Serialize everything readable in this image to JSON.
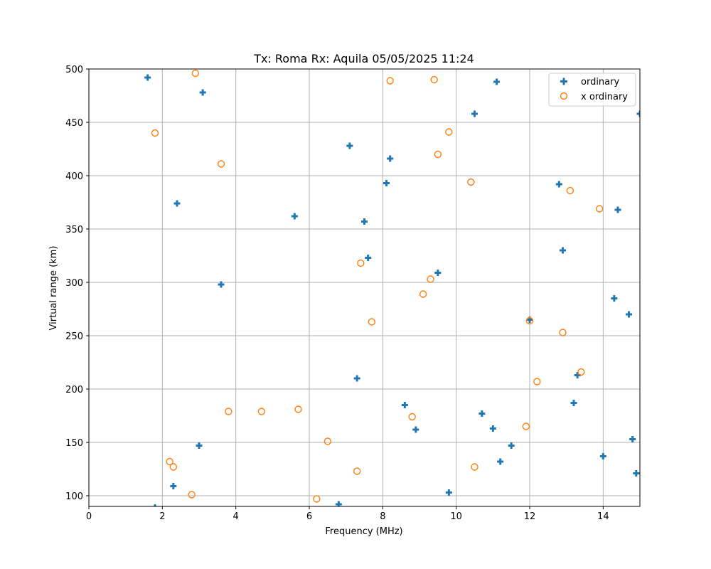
{
  "chart_data": {
    "type": "scatter",
    "title": "Tx: Roma Rx: Aquila 05/05/2025 11:24",
    "xlabel": "Frequency (MHz)",
    "ylabel": "Virtual range (km)",
    "xlim": [
      0,
      15
    ],
    "ylim": [
      90,
      500
    ],
    "xticks": [
      0,
      2,
      4,
      6,
      8,
      10,
      12,
      14
    ],
    "yticks": [
      100,
      150,
      200,
      250,
      300,
      350,
      400,
      450,
      500
    ],
    "grid": true,
    "legend_position": "upper right",
    "series": [
      {
        "name": "ordinary",
        "marker": "plus",
        "color": "#1f77b4",
        "points": [
          [
            1.6,
            492
          ],
          [
            3.1,
            478
          ],
          [
            2.4,
            374
          ],
          [
            5.6,
            362
          ],
          [
            3.6,
            298
          ],
          [
            1.8,
            89
          ],
          [
            2.3,
            109
          ],
          [
            3.0,
            147
          ],
          [
            7.1,
            428
          ],
          [
            8.2,
            416
          ],
          [
            8.1,
            393
          ],
          [
            7.5,
            357
          ],
          [
            7.6,
            323
          ],
          [
            9.5,
            309
          ],
          [
            7.3,
            210
          ],
          [
            8.6,
            185
          ],
          [
            8.9,
            162
          ],
          [
            6.8,
            92
          ],
          [
            9.8,
            103
          ],
          [
            10.5,
            458
          ],
          [
            11.1,
            488
          ],
          [
            10.7,
            177
          ],
          [
            11.0,
            163
          ],
          [
            11.5,
            147
          ],
          [
            11.2,
            132
          ],
          [
            12.0,
            265
          ],
          [
            12.8,
            392
          ],
          [
            12.9,
            330
          ],
          [
            13.3,
            213
          ],
          [
            13.2,
            187
          ],
          [
            14.0,
            137
          ],
          [
            14.3,
            285
          ],
          [
            14.4,
            368
          ],
          [
            14.7,
            270
          ],
          [
            14.8,
            153
          ],
          [
            14.9,
            121
          ],
          [
            15.0,
            458
          ]
        ]
      },
      {
        "name": "x ordinary",
        "marker": "circle-open",
        "color": "#ff7f0e",
        "points": [
          [
            2.9,
            496
          ],
          [
            1.8,
            440
          ],
          [
            3.6,
            411
          ],
          [
            8.2,
            489
          ],
          [
            9.4,
            490
          ],
          [
            9.8,
            441
          ],
          [
            9.5,
            420
          ],
          [
            10.4,
            394
          ],
          [
            7.4,
            318
          ],
          [
            9.3,
            303
          ],
          [
            9.1,
            289
          ],
          [
            7.7,
            263
          ],
          [
            3.8,
            179
          ],
          [
            4.7,
            179
          ],
          [
            5.7,
            181
          ],
          [
            6.5,
            151
          ],
          [
            8.8,
            174
          ],
          [
            2.2,
            132
          ],
          [
            2.3,
            127
          ],
          [
            2.8,
            101
          ],
          [
            6.2,
            97
          ],
          [
            7.3,
            123
          ],
          [
            10.5,
            127
          ],
          [
            11.9,
            165
          ],
          [
            12.0,
            264
          ],
          [
            12.2,
            207
          ],
          [
            12.9,
            253
          ],
          [
            13.4,
            216
          ],
          [
            13.1,
            386
          ],
          [
            13.9,
            369
          ]
        ]
      }
    ]
  },
  "legend": {
    "items": [
      {
        "label": "ordinary"
      },
      {
        "label": "x ordinary"
      }
    ]
  }
}
